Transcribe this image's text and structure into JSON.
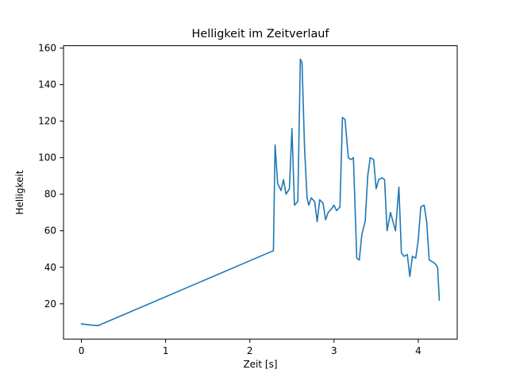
{
  "chart_data": {
    "type": "line",
    "title": "Helligkeit im Zeitverlauf",
    "xlabel": "Zeit [s]",
    "ylabel": "Helligkeit",
    "xlim": [
      -0.2125,
      4.4625
    ],
    "ylim": [
      0.7,
      161.3
    ],
    "xticks": [
      0,
      1,
      2,
      3,
      4
    ],
    "yticks": [
      20,
      40,
      60,
      80,
      100,
      120,
      140,
      160
    ],
    "grid": false,
    "legend": "none",
    "line_color": "#1f77b4",
    "x": [
      0.0,
      0.13,
      0.2,
      2.25,
      2.28,
      2.3,
      2.33,
      2.37,
      2.4,
      2.43,
      2.47,
      2.5,
      2.53,
      2.57,
      2.6,
      2.62,
      2.65,
      2.68,
      2.7,
      2.73,
      2.77,
      2.8,
      2.83,
      2.87,
      2.9,
      2.93,
      2.97,
      3.0,
      3.03,
      3.07,
      3.1,
      3.13,
      3.17,
      3.2,
      3.23,
      3.27,
      3.3,
      3.33,
      3.37,
      3.4,
      3.43,
      3.47,
      3.5,
      3.53,
      3.57,
      3.6,
      3.63,
      3.67,
      3.7,
      3.73,
      3.77,
      3.8,
      3.83,
      3.87,
      3.9,
      3.93,
      3.97,
      4.0,
      4.03,
      4.07,
      4.1,
      4.13,
      4.17,
      4.2,
      4.23,
      4.25
    ],
    "y": [
      9,
      8.3,
      8.1,
      48.5,
      49,
      107,
      86,
      82,
      88,
      80,
      83,
      116,
      74,
      76,
      154,
      152,
      105,
      78,
      74,
      78,
      76,
      65,
      77,
      75,
      66,
      70,
      72,
      74,
      71,
      73,
      122,
      121,
      100,
      99,
      100,
      45,
      44,
      58,
      65,
      90,
      100,
      99,
      83,
      88,
      89,
      88,
      60,
      70,
      65,
      60,
      84,
      48,
      46,
      47,
      35,
      46,
      45,
      55,
      73,
      74,
      65,
      44,
      43,
      42,
      40,
      22
    ]
  }
}
